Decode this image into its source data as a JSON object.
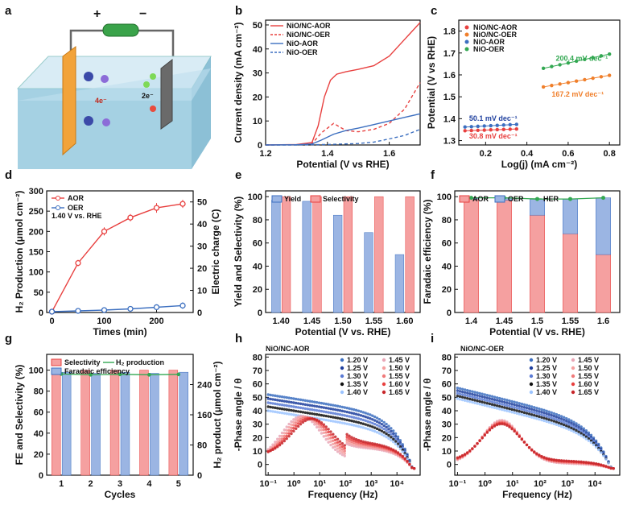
{
  "colors": {
    "red": "#e8403f",
    "red_light": "#f5a0a0",
    "blue": "#3c6fc0",
    "blue_light": "#9bb5e3",
    "orange": "#f07f2b",
    "green": "#33a852",
    "darkblue": "#1e3f9e",
    "black": "#111111",
    "pink": "#e9a7b7",
    "lightblue": "#9cc4ff"
  },
  "panels": {
    "a": {
      "label": "a",
      "caption_left": "4e⁻",
      "caption_right": "2e⁻"
    },
    "b": {
      "label": "b"
    },
    "c": {
      "label": "c"
    },
    "d": {
      "label": "d",
      "note": "1.40 V vs. RHE"
    },
    "e": {
      "label": "e"
    },
    "f": {
      "label": "f"
    },
    "g": {
      "label": "g"
    },
    "h": {
      "label": "h",
      "inset_title": "NiO/NC-AOR"
    },
    "i": {
      "label": "i",
      "inset_title": "NiO/NC-OER"
    }
  },
  "chart_data": [
    {
      "id": "b",
      "type": "line",
      "xlabel": "Potential (V vs RHE)",
      "ylabel": "Current density (mA cm⁻²)",
      "xlim": [
        1.2,
        1.7
      ],
      "ylim": [
        0,
        52
      ],
      "xticks": [
        "1.2",
        "1.4",
        "1.6"
      ],
      "yticks": [
        "0",
        "10",
        "20",
        "30",
        "40",
        "50"
      ],
      "series": [
        {
          "name": "NiO/NC-AOR",
          "style": "solid",
          "color": "red",
          "x": [
            1.2,
            1.3,
            1.35,
            1.37,
            1.39,
            1.41,
            1.43,
            1.46,
            1.5,
            1.55,
            1.6,
            1.65,
            1.7
          ],
          "y": [
            0,
            0.2,
            1,
            8,
            20,
            27,
            29.5,
            30.5,
            31.5,
            33,
            37,
            44,
            51
          ]
        },
        {
          "name": "NiO/NC-OER",
          "style": "dashed",
          "color": "red",
          "x": [
            1.2,
            1.3,
            1.35,
            1.38,
            1.42,
            1.46,
            1.5,
            1.55,
            1.6,
            1.65,
            1.7
          ],
          "y": [
            0,
            0.1,
            0.5,
            5,
            9,
            6,
            5.5,
            6.5,
            9,
            15,
            26
          ]
        },
        {
          "name": "NiO-AOR",
          "style": "solid",
          "color": "blue",
          "x": [
            1.2,
            1.3,
            1.35,
            1.38,
            1.42,
            1.46,
            1.5,
            1.55,
            1.6,
            1.65,
            1.7
          ],
          "y": [
            0,
            0.1,
            0.4,
            2,
            4.5,
            6,
            7,
            8.5,
            10,
            11.5,
            13
          ]
        },
        {
          "name": "NiO-OER",
          "style": "dashed",
          "color": "blue",
          "x": [
            1.2,
            1.3,
            1.4,
            1.5,
            1.55,
            1.6,
            1.65,
            1.7
          ],
          "y": [
            0,
            0,
            0.2,
            0.6,
            1.2,
            2.5,
            4,
            6.5
          ]
        }
      ]
    },
    {
      "id": "c",
      "type": "scatter",
      "xlabel": "Log(j) (mA cm⁻²)",
      "ylabel": "Potential (V vs RHE)",
      "xlim": [
        0.07,
        0.85
      ],
      "ylim": [
        1.28,
        1.85
      ],
      "xticks": [
        "0.2",
        "0.4",
        "0.6",
        "0.8"
      ],
      "yticks": [
        "1.3",
        "1.4",
        "1.5",
        "1.6",
        "1.7",
        "1.8"
      ],
      "legend": [
        "NiO/NC-AOR",
        "NiO/NC-OER",
        "NiO-AOR",
        "NiO-OER"
      ],
      "series": [
        {
          "name": "NiO/NC-AOR",
          "color": "red",
          "x0": 0.1,
          "x1": 0.35,
          "y0": 1.345,
          "y1": 1.353
        },
        {
          "name": "NiO/NC-OER",
          "color": "orange",
          "x0": 0.48,
          "x1": 0.8,
          "y0": 1.545,
          "y1": 1.598
        },
        {
          "name": "NiO-AOR",
          "color": "blue",
          "x0": 0.1,
          "x1": 0.35,
          "y0": 1.362,
          "y1": 1.374
        },
        {
          "name": "NiO-OER",
          "color": "green",
          "x0": 0.48,
          "x1": 0.8,
          "y0": 1.63,
          "y1": 1.695
        }
      ],
      "annotations": [
        "50.1 mV dec⁻¹",
        "30.8 mV dec⁻¹",
        "200.4 mV dec⁻¹",
        "167.2 mV dec⁻¹"
      ]
    },
    {
      "id": "d",
      "type": "line",
      "xlabel": "Times (min)",
      "ylabel": "H₂ Production (μmol cm⁻²)",
      "ylabel_right": "Electric charge (C)",
      "xlim": [
        -10,
        270
      ],
      "ylim": [
        0,
        300
      ],
      "xticks": [
        "0",
        "100",
        "200"
      ],
      "yticks": [
        "0",
        "50",
        "100",
        "150",
        "200",
        "250",
        "300"
      ],
      "yticks_right": [
        "0",
        "10",
        "20",
        "30",
        "40",
        "50"
      ],
      "legend": [
        "AOR",
        "OER"
      ],
      "series": [
        {
          "name": "AOR",
          "color": "red",
          "x": [
            0,
            50,
            100,
            150,
            200,
            250
          ],
          "y": [
            2,
            122,
            200,
            234,
            258,
            268
          ],
          "err": [
            3,
            8,
            10,
            9,
            12,
            10
          ]
        },
        {
          "name": "OER",
          "color": "blue",
          "x": [
            0,
            50,
            100,
            150,
            200,
            250
          ],
          "y": [
            2,
            4,
            6,
            9,
            13,
            17
          ],
          "err": [
            2,
            3,
            3,
            4,
            6,
            8
          ]
        }
      ]
    },
    {
      "id": "e",
      "type": "bar",
      "xlabel": "Potential (V vs. RHE)",
      "ylabel": "Yield and Selectivity (%)",
      "ylim": [
        0,
        105
      ],
      "categories": [
        "1.40",
        "1.45",
        "1.50",
        "1.55",
        "1.60"
      ],
      "yticks": [
        "0",
        "20",
        "40",
        "60",
        "80",
        "100"
      ],
      "series": [
        {
          "name": "Yield",
          "color": "blue",
          "values": [
            97,
            96,
            84,
            69,
            50
          ]
        },
        {
          "name": "Selectivity",
          "color": "red",
          "values": [
            100,
            100,
            100,
            100,
            100
          ]
        }
      ]
    },
    {
      "id": "f",
      "type": "bar",
      "xlabel": "Potential (V vs. RHE)",
      "ylabel": "Faradaic efficiency (%)",
      "ylim": [
        0,
        105
      ],
      "categories": [
        "1.4",
        "1.45",
        "1.5",
        "1.55",
        "1.6"
      ],
      "yticks": [
        "0",
        "20",
        "40",
        "60",
        "80",
        "100"
      ],
      "series": [
        {
          "name": "AOR",
          "color": "red",
          "values": [
            98,
            97,
            84,
            68,
            50
          ]
        },
        {
          "name": "OER",
          "color": "blue",
          "values": [
            1,
            2,
            14,
            30,
            49
          ]
        },
        {
          "name": "HER",
          "color": "green",
          "values": [
            99,
            99,
            98,
            98,
            99
          ]
        }
      ]
    },
    {
      "id": "g",
      "type": "bar",
      "xlabel": "Cycles",
      "ylabel": "FE and Selectivity (%)",
      "ylabel_right": "H₂ product (μmol cm⁻²)",
      "ylim": [
        0,
        115
      ],
      "categories": [
        "1",
        "2",
        "3",
        "4",
        "5"
      ],
      "yticks": [
        "0",
        "20",
        "40",
        "60",
        "80",
        "100"
      ],
      "yticks_right": [
        "0",
        "80",
        "160",
        "240"
      ],
      "legend": [
        "Selectivity",
        "H₂ production",
        "Faradaic efficiency"
      ],
      "series": [
        {
          "name": "Selectivity",
          "color": "red",
          "values": [
            100,
            100,
            100,
            100,
            100
          ]
        },
        {
          "name": "Faradaic efficiency",
          "color": "blue",
          "values": [
            98,
            97,
            98,
            97,
            98
          ]
        },
        {
          "name": "H₂ production",
          "color": "green",
          "values": [
            268,
            266,
            267,
            266,
            267
          ]
        }
      ]
    },
    {
      "id": "h",
      "type": "scatter",
      "xlabel": "Frequency (Hz)",
      "ylabel": "-Phase angle / θ",
      "ylim": [
        -8,
        82
      ],
      "xticks": [
        "10⁻¹",
        "10⁰",
        "10¹",
        "10²",
        "10³",
        "10⁴"
      ],
      "yticks": [
        "0",
        "10",
        "20",
        "30",
        "40",
        "50",
        "60",
        "70",
        "80"
      ],
      "legend": [
        "1.20 V",
        "1.25 V",
        "1.30 V",
        "1.35 V",
        "1.40 V",
        "1.45 V",
        "1.50 V",
        "1.55 V",
        "1.60 V",
        "1.65 V"
      ]
    },
    {
      "id": "i",
      "type": "scatter",
      "xlabel": "Frequency (Hz)",
      "ylabel": "-Phase angle / θ",
      "ylim": [
        -8,
        82
      ],
      "xticks": [
        "10⁻¹",
        "10⁰",
        "10¹",
        "10²",
        "10³",
        "10⁴"
      ],
      "yticks": [
        "0",
        "10",
        "20",
        "30",
        "40",
        "50",
        "60",
        "70",
        "80"
      ],
      "legend": [
        "1.20 V",
        "1.25 V",
        "1.30 V",
        "1.35 V",
        "1.40 V",
        "1.45 V",
        "1.50 V",
        "1.55 V",
        "1.60 V",
        "1.65 V"
      ]
    }
  ]
}
